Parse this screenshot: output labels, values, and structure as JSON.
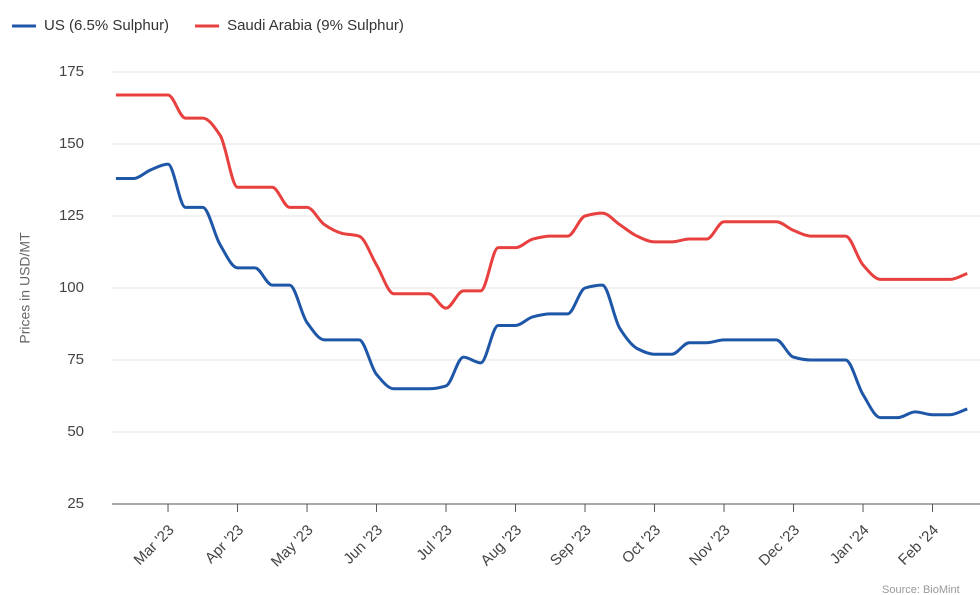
{
  "chart_data": {
    "type": "line",
    "y_label": "Prices in USD/MT",
    "source": "Source: BioMint",
    "categories": [
      null,
      null,
      null,
      "Mar '23",
      null,
      null,
      null,
      "Apr '23",
      null,
      null,
      null,
      "May '23",
      null,
      null,
      null,
      "Jun '23",
      null,
      null,
      null,
      "Jul '23",
      null,
      null,
      null,
      "Aug '23",
      null,
      null,
      null,
      "Sep '23",
      null,
      null,
      null,
      "Oct '23",
      null,
      null,
      null,
      "Nov '23",
      null,
      null,
      null,
      "Dec '23",
      null,
      null,
      null,
      "Jan '24",
      null,
      null,
      null,
      "Feb '24",
      null,
      null
    ],
    "series": [
      {
        "name": "US (6.5% Sulphur)",
        "color": "#1f57a8",
        "values": [
          138,
          138,
          141,
          143,
          128,
          128,
          115,
          107,
          107,
          101,
          101,
          88,
          82,
          82,
          82,
          70,
          65,
          65,
          65,
          66,
          76,
          74,
          87,
          87,
          90,
          91,
          91,
          100,
          101,
          86,
          79,
          77,
          77,
          81,
          81,
          82,
          82,
          82,
          82,
          76,
          75,
          75,
          75,
          63,
          55,
          55,
          57,
          56,
          56,
          58
        ]
      },
      {
        "name": "Saudi Arabia (9% Sulphur)",
        "color": "#e8403e",
        "values": [
          167,
          167,
          167,
          167,
          159,
          159,
          153,
          135,
          135,
          135,
          128,
          128,
          122,
          119,
          118,
          108,
          98,
          98,
          98,
          93,
          99,
          99,
          114,
          114,
          117,
          118,
          118,
          125,
          126,
          122,
          118,
          116,
          116,
          117,
          117,
          123,
          123,
          123,
          123,
          120,
          118,
          118,
          118,
          108,
          103,
          103,
          103,
          103,
          103,
          105
        ]
      }
    ],
    "ylim": [
      25,
      175
    ],
    "yticks": [
      25,
      50,
      75,
      100,
      125,
      150,
      175
    ],
    "grid": true,
    "legend": "top-left"
  }
}
